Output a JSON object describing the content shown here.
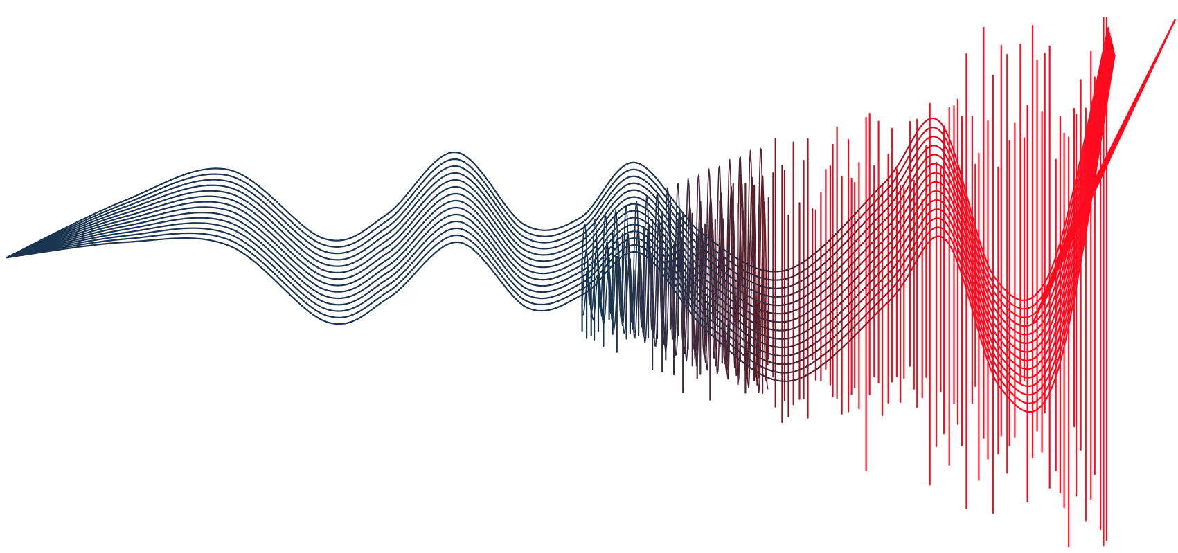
{
  "artwork": {
    "subject": "abstract-sound-wave",
    "background_color": "#ffffff",
    "start_color": "#1b3550",
    "middle_color": "#5a1f2a",
    "end_color": "#ff0a1e",
    "band_line_count": 14,
    "spike_count": 120
  }
}
